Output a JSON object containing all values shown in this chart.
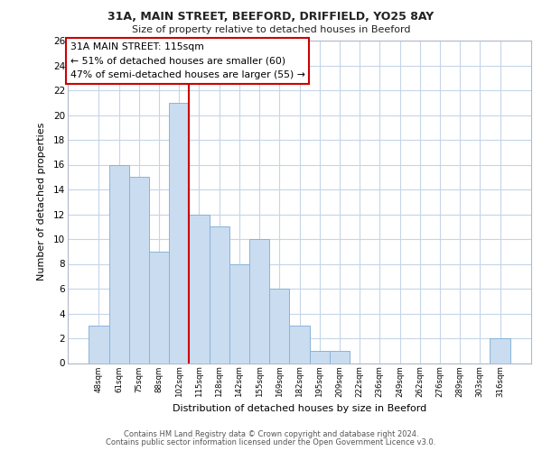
{
  "title1": "31A, MAIN STREET, BEEFORD, DRIFFIELD, YO25 8AY",
  "title2": "Size of property relative to detached houses in Beeford",
  "xlabel": "Distribution of detached houses by size in Beeford",
  "ylabel": "Number of detached properties",
  "bar_labels": [
    "48sqm",
    "61sqm",
    "75sqm",
    "88sqm",
    "102sqm",
    "115sqm",
    "128sqm",
    "142sqm",
    "155sqm",
    "169sqm",
    "182sqm",
    "195sqm",
    "209sqm",
    "222sqm",
    "236sqm",
    "249sqm",
    "262sqm",
    "276sqm",
    "289sqm",
    "303sqm",
    "316sqm"
  ],
  "bar_values": [
    3,
    16,
    15,
    9,
    21,
    12,
    11,
    8,
    10,
    6,
    3,
    1,
    1,
    0,
    0,
    0,
    0,
    0,
    0,
    0,
    2
  ],
  "bar_color": "#c9dcf0",
  "bar_edge_color": "#8ab4d8",
  "red_line_index": 5,
  "annotation_title": "31A MAIN STREET: 115sqm",
  "annotation_line1": "← 51% of detached houses are smaller (60)",
  "annotation_line2": "47% of semi-detached houses are larger (55) →",
  "annotation_box_edge": "#cc0000",
  "red_line_color": "#cc0000",
  "ylim": [
    0,
    26
  ],
  "yticks": [
    0,
    2,
    4,
    6,
    8,
    10,
    12,
    14,
    16,
    18,
    20,
    22,
    24,
    26
  ],
  "footer1": "Contains HM Land Registry data © Crown copyright and database right 2024.",
  "footer2": "Contains public sector information licensed under the Open Government Licence v3.0.",
  "bg_color": "#ffffff",
  "grid_color": "#c5d5e8"
}
